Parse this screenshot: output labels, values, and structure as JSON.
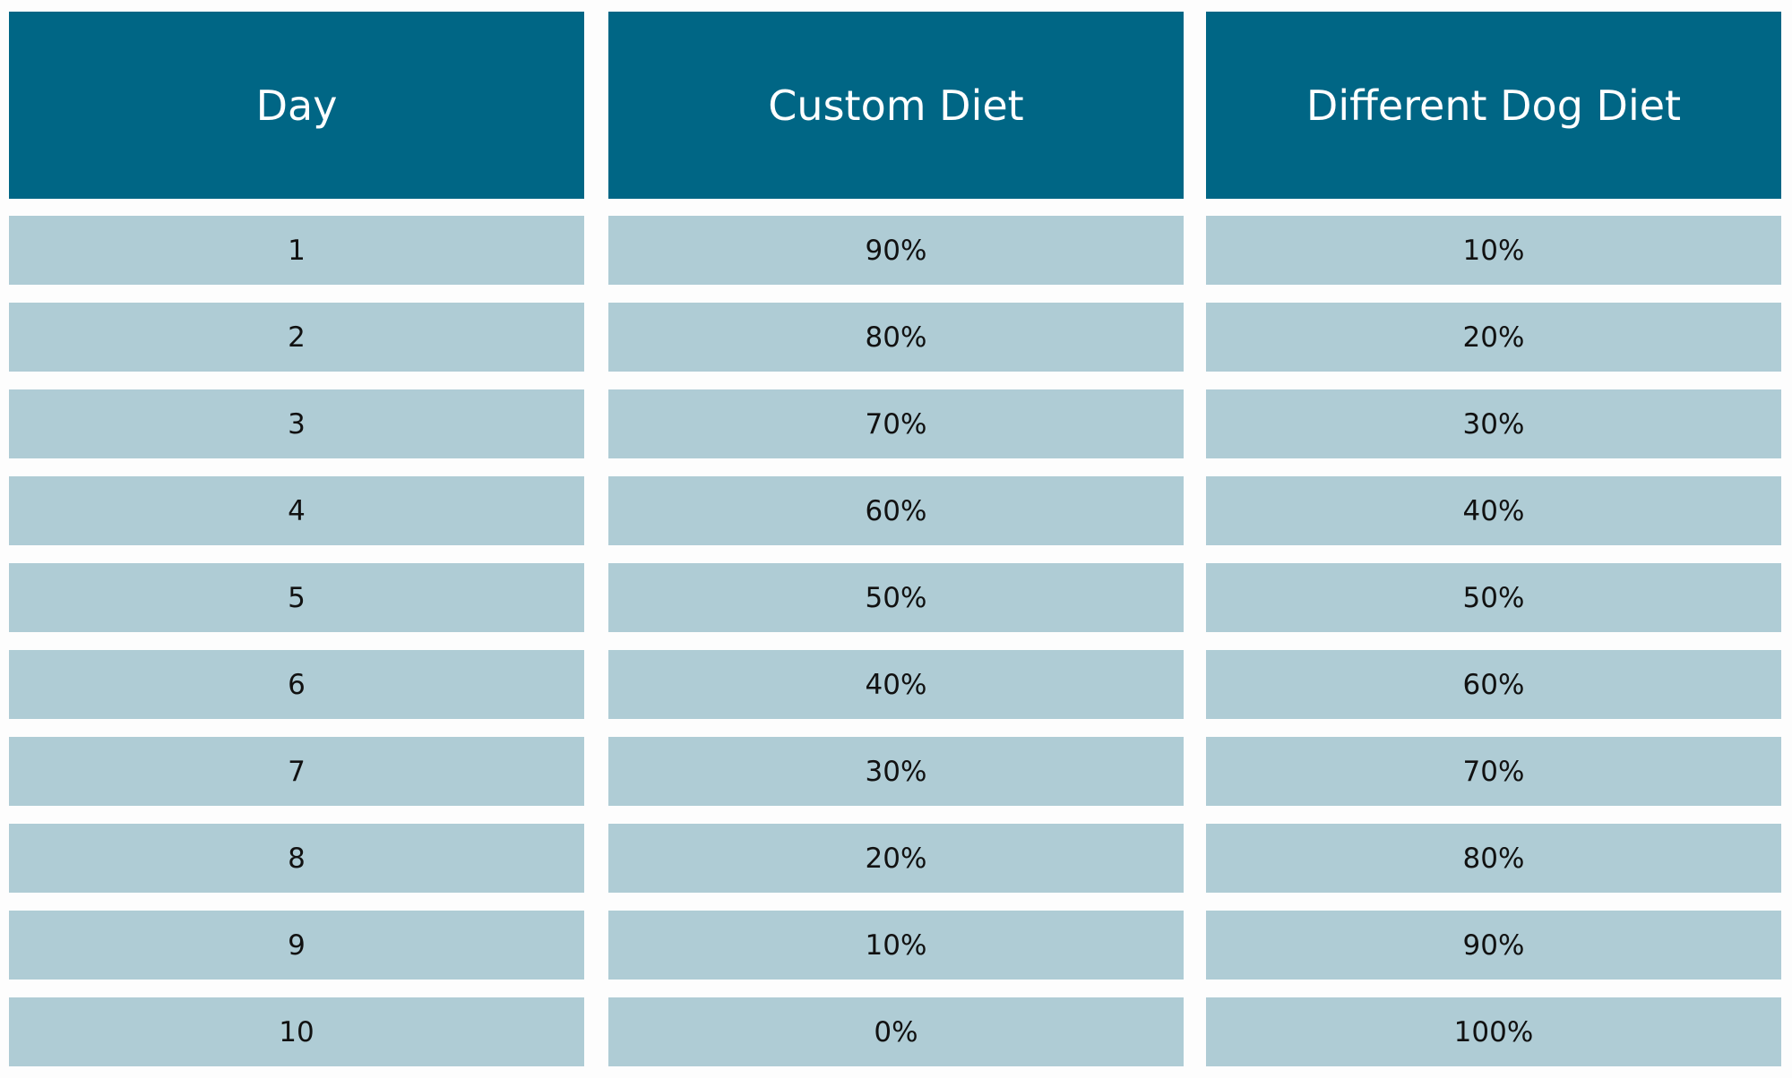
{
  "table": {
    "header": [
      "Day",
      "Custom Diet",
      "Different Dog Diet"
    ],
    "rows": [
      [
        "1",
        "90%",
        "10%"
      ],
      [
        "2",
        "80%",
        "20%"
      ],
      [
        "3",
        "70%",
        "30%"
      ],
      [
        "4",
        "60%",
        "40%"
      ],
      [
        "5",
        "50%",
        "50%"
      ],
      [
        "6",
        "40%",
        "60%"
      ],
      [
        "7",
        "30%",
        "70%"
      ],
      [
        "8",
        "20%",
        "80%"
      ],
      [
        "9",
        "10%",
        "90%"
      ],
      [
        "10",
        "0%",
        "100%"
      ]
    ]
  }
}
